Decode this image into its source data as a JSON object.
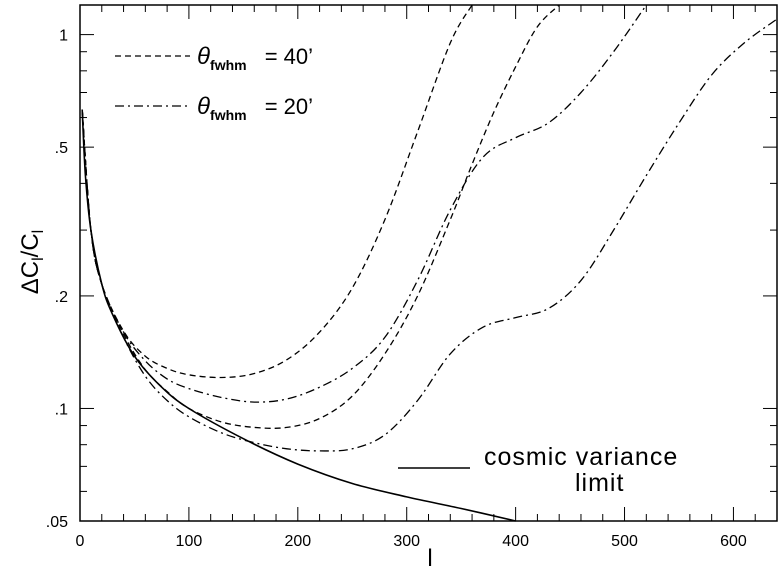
{
  "chart_data": {
    "type": "line",
    "xlabel": "l",
    "ylabel": "ΔC_l/C_l",
    "xlim": [
      0,
      640
    ],
    "ylim": [
      0.05,
      1.2
    ],
    "yscale": "log",
    "xticks": [
      0,
      100,
      200,
      300,
      400,
      500,
      600
    ],
    "xtick_labels": [
      "0",
      "100",
      "200",
      "300",
      "400",
      "500",
      "600"
    ],
    "yticks": [
      0.05,
      0.1,
      0.2,
      0.5,
      1
    ],
    "ytick_labels": [
      ".05",
      ".1",
      ".2",
      ".5",
      "1"
    ],
    "legend": [
      {
        "label": "θ",
        "sub": "fwhm",
        "suffix": "= 40’",
        "style": "dashed"
      },
      {
        "label": "θ",
        "sub": "fwhm",
        "suffix": "= 20’",
        "style": "dashdot"
      }
    ],
    "annotation": {
      "line1": "cosmic variance",
      "line2": "limit",
      "style": "solid"
    },
    "series": [
      {
        "style": "solid",
        "x": [
          2,
          5,
          10,
          20,
          30,
          50,
          75,
          100,
          150,
          200,
          250,
          300,
          350,
          400
        ],
        "y": [
          0.63,
          0.42,
          0.3,
          0.215,
          0.178,
          0.138,
          0.114,
          0.1,
          0.083,
          0.071,
          0.063,
          0.058,
          0.054,
          0.05
        ]
      },
      {
        "style": "dashed",
        "x": [
          2,
          10,
          20,
          40,
          60,
          80,
          100,
          130,
          160,
          190,
          220,
          250,
          280,
          310,
          340,
          360
        ],
        "y": [
          0.63,
          0.3,
          0.215,
          0.161,
          0.138,
          0.128,
          0.123,
          0.121,
          0.124,
          0.135,
          0.16,
          0.21,
          0.32,
          0.55,
          0.95,
          1.2
        ]
      },
      {
        "style": "dashed",
        "x": [
          2,
          10,
          20,
          40,
          60,
          80,
          100,
          130,
          160,
          190,
          220,
          250,
          280,
          310,
          340,
          360,
          380,
          400,
          420,
          440
        ],
        "y": [
          0.63,
          0.3,
          0.215,
          0.158,
          0.127,
          0.111,
          0.1,
          0.092,
          0.089,
          0.089,
          0.094,
          0.108,
          0.14,
          0.2,
          0.32,
          0.45,
          0.62,
          0.82,
          1.05,
          1.2
        ]
      },
      {
        "style": "dashdot",
        "x": [
          2,
          10,
          20,
          40,
          60,
          80,
          100,
          130,
          160,
          190,
          220,
          250,
          280,
          310,
          340,
          370,
          400,
          430,
          460,
          490,
          520
        ],
        "y": [
          0.63,
          0.3,
          0.215,
          0.16,
          0.134,
          0.12,
          0.113,
          0.107,
          0.104,
          0.106,
          0.114,
          0.128,
          0.155,
          0.22,
          0.34,
          0.47,
          0.53,
          0.58,
          0.7,
          0.9,
          1.2
        ]
      },
      {
        "style": "dashdot",
        "x": [
          2,
          10,
          20,
          40,
          60,
          80,
          100,
          130,
          160,
          190,
          220,
          250,
          280,
          310,
          340,
          370,
          400,
          430,
          460,
          490,
          520,
          550,
          580,
          610,
          640
        ],
        "y": [
          0.63,
          0.3,
          0.215,
          0.155,
          0.122,
          0.105,
          0.095,
          0.086,
          0.081,
          0.078,
          0.077,
          0.078,
          0.085,
          0.105,
          0.14,
          0.165,
          0.175,
          0.185,
          0.22,
          0.3,
          0.42,
          0.58,
          0.78,
          0.95,
          1.1
        ]
      }
    ]
  }
}
